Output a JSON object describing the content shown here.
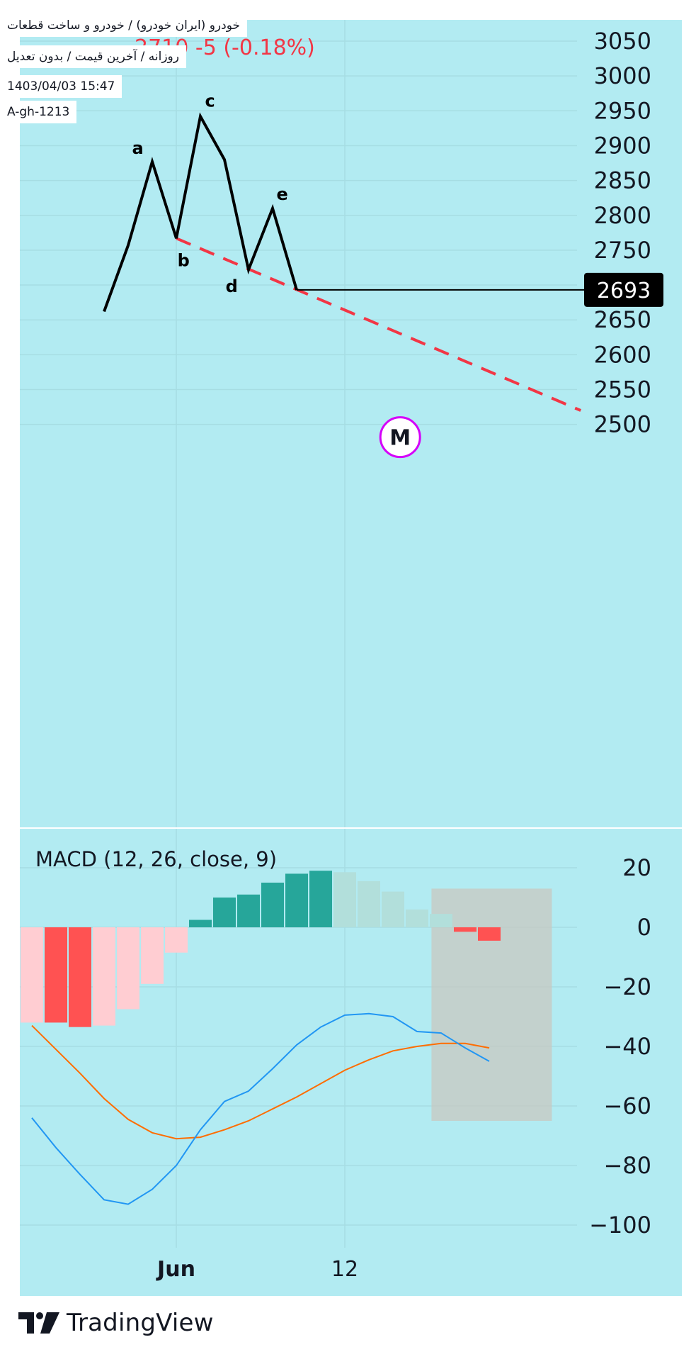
{
  "header": {
    "symbol_title": "خودرو (ایران خودرو) / خودرو و ساخت قطعات",
    "subtitle": "روزانه / آخرین قیمت / بدون تعدیل",
    "datetime": "1403/04/03 15:47",
    "author": "A-gh-1213",
    "price_change": "2710  -5 (-0.18%)"
  },
  "colors": {
    "background": "#b2ebf2",
    "wave_line": "#000000",
    "trend_line": "#f23645",
    "macd_line": "#2196f3",
    "signal_line": "#ff6d00",
    "hist_strong_up": "#26a69a",
    "hist_weak_up": "#b2dfdb",
    "hist_strong_down": "#ff5252",
    "hist_weak_down": "#ffcdd2",
    "highlight_box": "#c8c8c0"
  },
  "chart_data": [
    {
      "type": "line",
      "name": "price-pane",
      "y_axis": {
        "ticks": [
          3050,
          3000,
          2950,
          2900,
          2850,
          2800,
          2750,
          2700,
          2650,
          2600,
          2550,
          2500
        ],
        "range": [
          2485,
          3060
        ]
      },
      "x_axis": {
        "ticks": [
          {
            "label": "Jun",
            "bar": 6
          },
          {
            "label": "12",
            "bar": 13
          }
        ]
      },
      "bar_range": [
        0,
        28
      ],
      "wave_path": [
        {
          "bar": 3,
          "value": 2662
        },
        {
          "bar": 4,
          "value": 2757
        },
        {
          "bar": 5,
          "value": 2877,
          "label": "a"
        },
        {
          "bar": 6,
          "value": 2767,
          "label": "b"
        },
        {
          "bar": 7,
          "value": 2942,
          "label": "c"
        },
        {
          "bar": 8,
          "value": 2880
        },
        {
          "bar": 9,
          "value": 2722,
          "label": "d"
        },
        {
          "bar": 10,
          "value": 2810,
          "label": "e"
        },
        {
          "bar": 11,
          "value": 2693
        }
      ],
      "wave_labels": [
        {
          "text": "a",
          "bar": 4.4,
          "value": 2888
        },
        {
          "text": "b",
          "bar": 6.3,
          "value": 2727
        },
        {
          "text": "c",
          "bar": 7.4,
          "value": 2956
        },
        {
          "text": "d",
          "bar": 8.3,
          "value": 2690
        },
        {
          "text": "e",
          "bar": 10.4,
          "value": 2822
        }
      ],
      "trend_line": {
        "from": {
          "bar": 6,
          "value": 2767
        },
        "to": {
          "bar": 22.8,
          "value": 2520
        }
      },
      "last_price": {
        "value": 2693,
        "label": "2693",
        "from_bar": 11
      },
      "marker": {
        "text": "M",
        "bar": 15.3,
        "value": 2502
      }
    },
    {
      "type": "bar",
      "name": "MACD (12, 26, close, 9)",
      "title": "MACD (12, 26, close, 9)",
      "y_axis": {
        "ticks": [
          20,
          0,
          -20,
          -40,
          -60,
          -80,
          -100
        ],
        "range": [
          -105,
          27
        ]
      },
      "histogram": [
        {
          "bar": 0,
          "value": -32,
          "shade": "weak_down"
        },
        {
          "bar": 1,
          "value": -32,
          "shade": "strong_down"
        },
        {
          "bar": 2,
          "value": -33.5,
          "shade": "strong_down"
        },
        {
          "bar": 3,
          "value": -33,
          "shade": "weak_down"
        },
        {
          "bar": 4,
          "value": -27.5,
          "shade": "weak_down"
        },
        {
          "bar": 5,
          "value": -19,
          "shade": "weak_down"
        },
        {
          "bar": 6,
          "value": -8.5,
          "shade": "weak_down"
        },
        {
          "bar": 7,
          "value": 2.5,
          "shade": "strong_up"
        },
        {
          "bar": 8,
          "value": 10,
          "shade": "strong_up"
        },
        {
          "bar": 9,
          "value": 11,
          "shade": "strong_up"
        },
        {
          "bar": 10,
          "value": 15,
          "shade": "strong_up"
        },
        {
          "bar": 11,
          "value": 18,
          "shade": "strong_up"
        },
        {
          "bar": 12,
          "value": 19,
          "shade": "strong_up"
        },
        {
          "bar": 13,
          "value": 18.5,
          "shade": "weak_up"
        },
        {
          "bar": 14,
          "value": 15.5,
          "shade": "weak_up"
        },
        {
          "bar": 15,
          "value": 12,
          "shade": "weak_up"
        },
        {
          "bar": 16,
          "value": 6,
          "shade": "weak_up"
        },
        {
          "bar": 17,
          "value": 4.5,
          "shade": "weak_up"
        },
        {
          "bar": 18,
          "value": -1.5,
          "shade": "strong_down"
        },
        {
          "bar": 19,
          "value": -4.5,
          "shade": "strong_down"
        }
      ],
      "series": [
        {
          "key": "macd",
          "values": [
            {
              "bar": 0,
              "value": -64
            },
            {
              "bar": 1,
              "value": -74
            },
            {
              "bar": 2,
              "value": -83
            },
            {
              "bar": 3,
              "value": -91.5
            },
            {
              "bar": 4,
              "value": -93
            },
            {
              "bar": 5,
              "value": -88
            },
            {
              "bar": 6,
              "value": -80
            },
            {
              "bar": 7,
              "value": -68
            },
            {
              "bar": 8,
              "value": -58.5
            },
            {
              "bar": 9,
              "value": -55
            },
            {
              "bar": 10,
              "value": -47.5
            },
            {
              "bar": 11,
              "value": -39.5
            },
            {
              "bar": 12,
              "value": -33.5
            },
            {
              "bar": 13,
              "value": -29.5
            },
            {
              "bar": 14,
              "value": -29
            },
            {
              "bar": 15,
              "value": -30
            },
            {
              "bar": 16,
              "value": -35
            },
            {
              "bar": 17,
              "value": -35.5
            },
            {
              "bar": 18,
              "value": -40.5
            },
            {
              "bar": 19,
              "value": -45
            }
          ]
        },
        {
          "key": "signal",
          "values": [
            {
              "bar": 0,
              "value": -33
            },
            {
              "bar": 1,
              "value": -41
            },
            {
              "bar": 2,
              "value": -49
            },
            {
              "bar": 3,
              "value": -57.5
            },
            {
              "bar": 4,
              "value": -64.5
            },
            {
              "bar": 5,
              "value": -69
            },
            {
              "bar": 6,
              "value": -71
            },
            {
              "bar": 7,
              "value": -70.5
            },
            {
              "bar": 8,
              "value": -68
            },
            {
              "bar": 9,
              "value": -65
            },
            {
              "bar": 10,
              "value": -61
            },
            {
              "bar": 11,
              "value": -57
            },
            {
              "bar": 12,
              "value": -52.5
            },
            {
              "bar": 13,
              "value": -48
            },
            {
              "bar": 14,
              "value": -44.5
            },
            {
              "bar": 15,
              "value": -41.5
            },
            {
              "bar": 16,
              "value": -40
            },
            {
              "bar": 17,
              "value": -39
            },
            {
              "bar": 18,
              "value": -39
            },
            {
              "bar": 19,
              "value": -40.5
            }
          ]
        }
      ],
      "highlight": {
        "from_bar": 16.6,
        "to_bar": 21.6,
        "top": 13,
        "bottom": -65
      }
    }
  ],
  "branding": {
    "logo_text": "TradingView"
  }
}
